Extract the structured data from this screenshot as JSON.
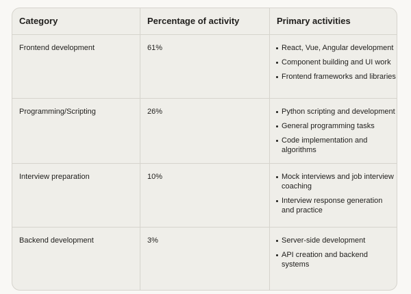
{
  "table": {
    "headers": [
      "Category",
      "Percentage of activity",
      "Primary activities"
    ],
    "rows": [
      {
        "category": "Frontend development",
        "percentage": "61%",
        "activities": [
          "React, Vue, Angular development",
          "Component building and UI work",
          "Frontend frameworks and libraries"
        ]
      },
      {
        "category": "Programming/Scripting",
        "percentage": "26%",
        "activities": [
          "Python scripting and development",
          "General programming tasks",
          "Code implementation and algorithms"
        ]
      },
      {
        "category": "Interview preparation",
        "percentage": "10%",
        "activities": [
          "Mock interviews and job interview coaching",
          "Interview response generation and practice"
        ]
      },
      {
        "category": "Backend development",
        "percentage": "3%",
        "activities": [
          "Server-side development",
          "API creation and backend systems"
        ]
      }
    ]
  }
}
